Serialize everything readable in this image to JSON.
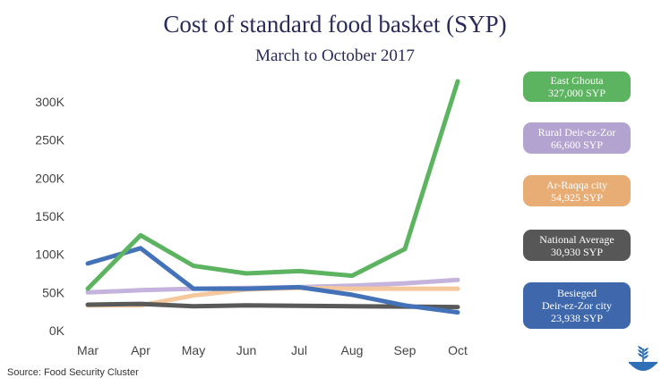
{
  "chart_data": {
    "type": "line",
    "title": "Cost of standard food basket (SYP)",
    "subtitle": "March to October 2017",
    "categories": [
      "Mar",
      "Apr",
      "May",
      "Jun",
      "Jul",
      "Aug",
      "Sep",
      "Oct"
    ],
    "ylim": [
      0,
      330000
    ],
    "yticks": [
      0,
      50000,
      100000,
      150000,
      200000,
      250000,
      300000
    ],
    "ytick_labels": [
      "0K",
      "50K",
      "100K",
      "150K",
      "200K",
      "250K",
      "300K"
    ],
    "grid": false,
    "series": [
      {
        "name": "East Ghouta",
        "color": "#5cb360",
        "values": [
          55000,
          125000,
          85000,
          75000,
          78000,
          72000,
          107000,
          327000
        ]
      },
      {
        "name": "Rural Deir-ez-Zor",
        "color": "#c4b3dc",
        "values": [
          50000,
          53000,
          55000,
          56000,
          57000,
          59000,
          62000,
          66600
        ]
      },
      {
        "name": "Ar-Raqqa city",
        "color": "#f5c79d",
        "values": [
          33000,
          33000,
          46000,
          54000,
          56000,
          55000,
          55000,
          54925
        ]
      },
      {
        "name": "National Average",
        "color": "#595959",
        "values": [
          34000,
          35000,
          32000,
          33000,
          32500,
          32000,
          31500,
          30930
        ]
      },
      {
        "name": "Besieged Deir-ez-Zor city",
        "color": "#4472b8",
        "values": [
          88000,
          108000,
          55000,
          55000,
          57000,
          47000,
          33000,
          23938
        ]
      }
    ]
  },
  "source": "Source: Food Security Cluster",
  "labels": [
    {
      "line1": "East Ghouta",
      "line2": "",
      "value": "327,000 SYP",
      "color": "#5cb360"
    },
    {
      "line1": "Rural Deir-ez-Zor",
      "line2": "",
      "value": "66,600 SYP",
      "color": "#b3a3d0"
    },
    {
      "line1": "Ar-Raqqa city",
      "line2": "",
      "value": "54,925 SYP",
      "color": "#e8ad74"
    },
    {
      "line1": "National Average",
      "line2": "",
      "value": "30,930 SYP",
      "color": "#575757"
    },
    {
      "line1": "Besieged",
      "line2": "Deir-ez-Zor city",
      "value": "23,938 SYP",
      "color": "#3f68ac"
    }
  ],
  "logo_icon": "wheat-bowl-icon"
}
